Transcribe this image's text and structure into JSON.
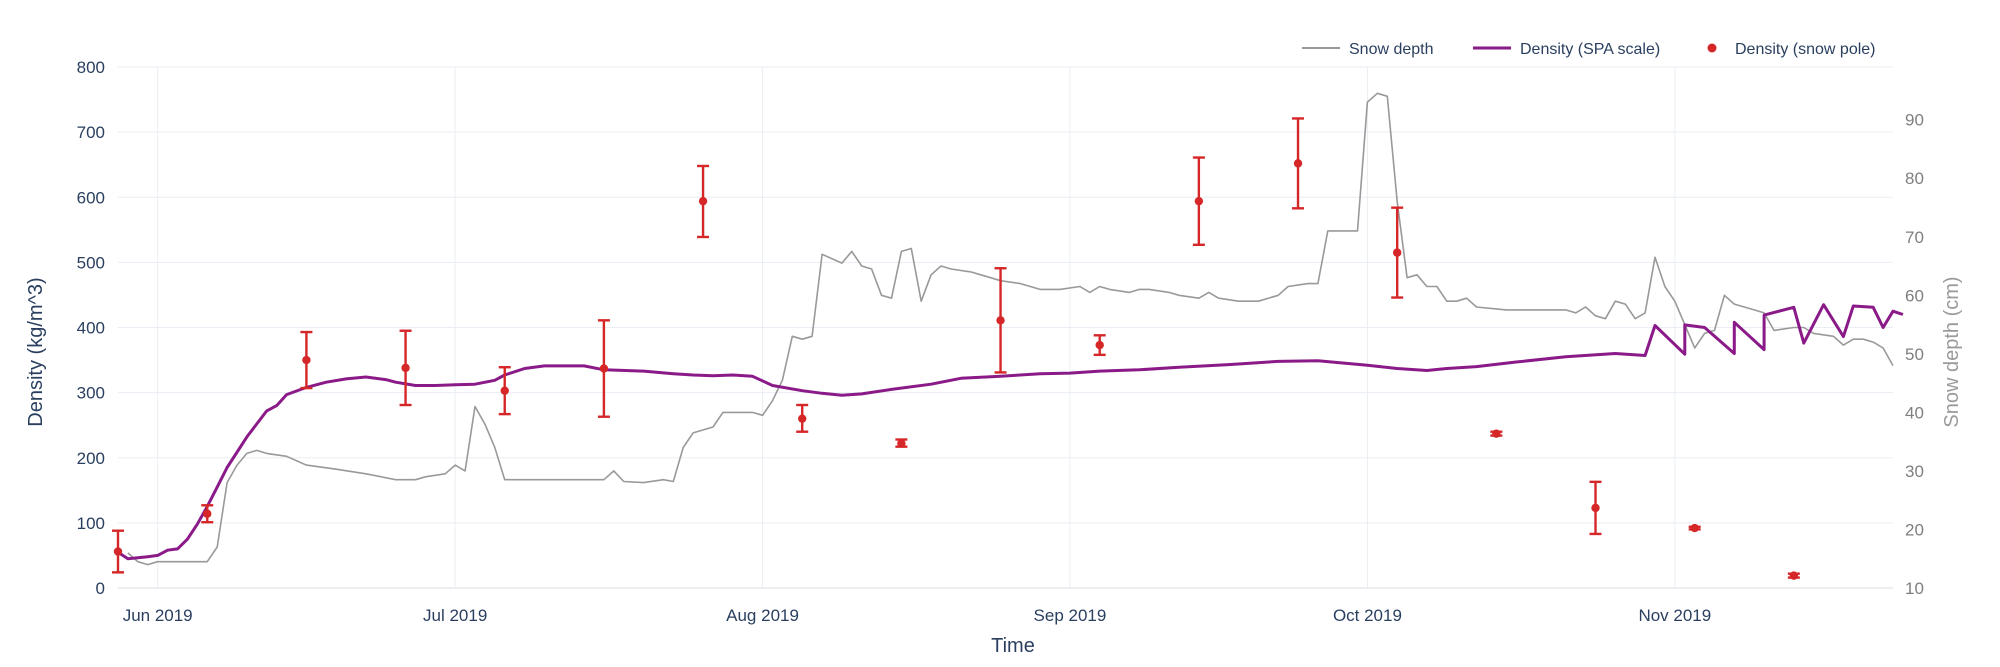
{
  "chart_data": {
    "type": "line",
    "xlabel": "Time",
    "ylabel": "Density (kg/m^3)",
    "ylabel_right": "Snow depth (cm)",
    "ylim": [
      0,
      800
    ],
    "ylim_right": [
      10,
      99
    ],
    "xlim": [
      "2019-05-28",
      "2019-11-23"
    ],
    "y_ticks": [
      0,
      100,
      200,
      300,
      400,
      500,
      600,
      700,
      800
    ],
    "y_right_ticks": [
      10,
      20,
      30,
      40,
      50,
      60,
      70,
      80,
      90
    ],
    "x_ticks": [
      {
        "date": "2019-06-01",
        "label": "Jun 2019"
      },
      {
        "date": "2019-07-01",
        "label": "Jul 2019"
      },
      {
        "date": "2019-08-01",
        "label": "Aug 2019"
      },
      {
        "date": "2019-09-01",
        "label": "Sep 2019"
      },
      {
        "date": "2019-10-01",
        "label": "Oct 2019"
      },
      {
        "date": "2019-11-01",
        "label": "Nov 2019"
      }
    ],
    "grid": true,
    "legend_position": "top-right",
    "series": [
      {
        "name": "Snow depth",
        "axis": "right",
        "type": "line",
        "color": "#999999",
        "points": [
          [
            "2019-05-29",
            16
          ],
          [
            "2019-05-30",
            14.5
          ],
          [
            "2019-05-31",
            14
          ],
          [
            "2019-06-01",
            14.5
          ],
          [
            "2019-06-02",
            14.5
          ],
          [
            "2019-06-03",
            14.5
          ],
          [
            "2019-06-06",
            14.5
          ],
          [
            "2019-06-07",
            17
          ],
          [
            "2019-06-08",
            28
          ],
          [
            "2019-06-09",
            31
          ],
          [
            "2019-06-10",
            33
          ],
          [
            "2019-06-11",
            33.5
          ],
          [
            "2019-06-12",
            33
          ],
          [
            "2019-06-14",
            32.5
          ],
          [
            "2019-06-16",
            31
          ],
          [
            "2019-06-19",
            30.3
          ],
          [
            "2019-06-22",
            29.5
          ],
          [
            "2019-06-25",
            28.5
          ],
          [
            "2019-06-27",
            28.5
          ],
          [
            "2019-06-28",
            29
          ],
          [
            "2019-06-30",
            29.5
          ],
          [
            "2019-07-01",
            31
          ],
          [
            "2019-07-02",
            30
          ],
          [
            "2019-06-25",
            28.5
          ],
          [
            "2019-07-03",
            41
          ],
          [
            "2019-07-04",
            38
          ],
          [
            "2019-07-05",
            34
          ],
          [
            "2019-07-06",
            28.5
          ],
          [
            "2019-07-09",
            28.5
          ],
          [
            "2019-07-13",
            28.5
          ],
          [
            "2019-07-16",
            28.5
          ],
          [
            "2019-07-17",
            30
          ],
          [
            "2019-07-18",
            28.2
          ],
          [
            "2019-07-20",
            28
          ],
          [
            "2019-07-22",
            28.5
          ],
          [
            "2019-07-23",
            28.2
          ],
          [
            "2019-07-24",
            34
          ],
          [
            "2019-07-25",
            36.5
          ],
          [
            "2019-07-27",
            37.5
          ],
          [
            "2019-07-28",
            40
          ],
          [
            "2019-07-31",
            40
          ],
          [
            "2019-08-01",
            39.5
          ],
          [
            "2019-08-02",
            42
          ],
          [
            "2019-08-03",
            45.5
          ],
          [
            "2019-08-04",
            53
          ],
          [
            "2019-08-05",
            52.5
          ],
          [
            "2019-08-06",
            53
          ],
          [
            "2019-08-07",
            67
          ],
          [
            "2019-08-09",
            65.5
          ],
          [
            "2019-08-10",
            67.5
          ],
          [
            "2019-08-11",
            65
          ],
          [
            "2019-08-12",
            64.5
          ],
          [
            "2019-08-13",
            60
          ],
          [
            "2019-08-14",
            59.5
          ],
          [
            "2019-08-15",
            67.5
          ],
          [
            "2019-08-16",
            68
          ],
          [
            "2019-08-17",
            59
          ],
          [
            "2019-08-18",
            63.5
          ],
          [
            "2019-08-19",
            65
          ],
          [
            "2019-08-20",
            64.5
          ],
          [
            "2019-08-22",
            64
          ],
          [
            "2019-08-23",
            63.5
          ],
          [
            "2019-08-24",
            63
          ],
          [
            "2019-08-25",
            62.5
          ],
          [
            "2019-08-27",
            62
          ],
          [
            "2019-08-29",
            61
          ],
          [
            "2019-08-31",
            61
          ],
          [
            "2019-09-02",
            61.5
          ],
          [
            "2019-09-03",
            60.5
          ],
          [
            "2019-09-04",
            61.5
          ],
          [
            "2019-09-05",
            61
          ],
          [
            "2019-09-07",
            60.5
          ],
          [
            "2019-09-08",
            61
          ],
          [
            "2019-09-09",
            61
          ],
          [
            "2019-09-11",
            60.5
          ],
          [
            "2019-09-12",
            60
          ],
          [
            "2019-09-14",
            59.5
          ],
          [
            "2019-09-15",
            60.5
          ],
          [
            "2019-09-16",
            59.5
          ],
          [
            "2019-09-18",
            59
          ],
          [
            "2019-09-20",
            59
          ],
          [
            "2019-09-22",
            60
          ],
          [
            "2019-09-23",
            61.5
          ],
          [
            "2019-09-25",
            62
          ],
          [
            "2019-09-26",
            62
          ],
          [
            "2019-09-27",
            71
          ],
          [
            "2019-09-28",
            71
          ],
          [
            "2019-09-30",
            71
          ],
          [
            "2019-10-01",
            93
          ],
          [
            "2019-10-02",
            94.5
          ],
          [
            "2019-10-03",
            94
          ],
          [
            "2019-10-04",
            76
          ],
          [
            "2019-10-05",
            63
          ],
          [
            "2019-10-06",
            63.5
          ],
          [
            "2019-10-07",
            61.5
          ],
          [
            "2019-10-08",
            61.5
          ],
          [
            "2019-10-09",
            59
          ],
          [
            "2019-10-10",
            59
          ],
          [
            "2019-10-11",
            59.5
          ],
          [
            "2019-10-12",
            58
          ],
          [
            "2019-10-15",
            57.5
          ],
          [
            "2019-10-18",
            57.5
          ],
          [
            "2019-10-21",
            57.5
          ],
          [
            "2019-10-22",
            57
          ],
          [
            "2019-10-23",
            58
          ],
          [
            "2019-10-24",
            56.5
          ],
          [
            "2019-10-25",
            56
          ],
          [
            "2019-10-26",
            59
          ],
          [
            "2019-10-27",
            58.5
          ],
          [
            "2019-10-28",
            56
          ],
          [
            "2019-10-29",
            57
          ],
          [
            "2019-10-30",
            66.5
          ],
          [
            "2019-10-31",
            61.5
          ],
          [
            "2019-11-01",
            59
          ],
          [
            "2019-11-02",
            55
          ],
          [
            "2019-11-03",
            51
          ],
          [
            "2019-11-04",
            53.5
          ],
          [
            "2019-11-05",
            54
          ],
          [
            "2019-11-06",
            60
          ],
          [
            "2019-11-07",
            58.5
          ],
          [
            "2019-11-08",
            58
          ],
          [
            "2019-11-09",
            57.5
          ],
          [
            "2019-11-10",
            57
          ],
          [
            "2019-11-11",
            54
          ],
          [
            "2019-11-13",
            54.5
          ],
          [
            "2019-11-14",
            54.5
          ],
          [
            "2019-11-15",
            53.5
          ],
          [
            "2019-11-17",
            53
          ],
          [
            "2019-11-18",
            51.5
          ],
          [
            "2019-11-19",
            52.5
          ],
          [
            "2019-11-20",
            52.5
          ],
          [
            "2019-11-21",
            52
          ],
          [
            "2019-11-22",
            51
          ],
          [
            "2019-11-23",
            48
          ]
        ]
      },
      {
        "name": "Density (SPA scale)",
        "axis": "left",
        "type": "line",
        "color": "#8b1a89",
        "points": [
          [
            "2019-05-28",
            55
          ],
          [
            "2019-05-29",
            45
          ],
          [
            "2019-05-31",
            48
          ],
          [
            "2019-06-01",
            50
          ],
          [
            "2019-06-02",
            58
          ],
          [
            "2019-06-03",
            60
          ],
          [
            "2019-06-04",
            75
          ],
          [
            "2019-06-05",
            98
          ],
          [
            "2019-06-06",
            125
          ],
          [
            "2019-06-07",
            155
          ],
          [
            "2019-06-08",
            185
          ],
          [
            "2019-06-10",
            232
          ],
          [
            "2019-06-12",
            272
          ],
          [
            "2019-06-13",
            280
          ],
          [
            "2019-06-14",
            297
          ],
          [
            "2019-06-16",
            308
          ],
          [
            "2019-06-18",
            316
          ],
          [
            "2019-06-20",
            321
          ],
          [
            "2019-06-22",
            324
          ],
          [
            "2019-06-24",
            320
          ],
          [
            "2019-06-25",
            316
          ],
          [
            "2019-06-27",
            311
          ],
          [
            "2019-06-29",
            311
          ],
          [
            "2019-07-01",
            312
          ],
          [
            "2019-07-03",
            313
          ],
          [
            "2019-07-05",
            319
          ],
          [
            "2019-07-06",
            327
          ],
          [
            "2019-07-08",
            337
          ],
          [
            "2019-07-10",
            341
          ],
          [
            "2019-07-14",
            341
          ],
          [
            "2019-07-16",
            335
          ],
          [
            "2019-07-20",
            333
          ],
          [
            "2019-07-23",
            329
          ],
          [
            "2019-07-25",
            327
          ],
          [
            "2019-07-27",
            326
          ],
          [
            "2019-07-29",
            327
          ],
          [
            "2019-07-31",
            325
          ],
          [
            "2019-08-02",
            311
          ],
          [
            "2019-08-05",
            303
          ],
          [
            "2019-08-07",
            299
          ],
          [
            "2019-08-09",
            296
          ],
          [
            "2019-08-11",
            298
          ],
          [
            "2019-08-14",
            305
          ],
          [
            "2019-08-18",
            313
          ],
          [
            "2019-08-21",
            322
          ],
          [
            "2019-08-25",
            325
          ],
          [
            "2019-08-29",
            329
          ],
          [
            "2019-09-01",
            330
          ],
          [
            "2019-09-04",
            333
          ],
          [
            "2019-09-08",
            335
          ],
          [
            "2019-09-12",
            339
          ],
          [
            "2019-09-17",
            343
          ],
          [
            "2019-09-22",
            348
          ],
          [
            "2019-09-26",
            349
          ],
          [
            "2019-10-01",
            342
          ],
          [
            "2019-10-04",
            337
          ],
          [
            "2019-10-07",
            334
          ],
          [
            "2019-10-09",
            337
          ],
          [
            "2019-10-12",
            340
          ],
          [
            "2019-10-16",
            347
          ],
          [
            "2019-10-21",
            355
          ],
          [
            "2019-10-26",
            360
          ],
          [
            "2019-10-29",
            357
          ],
          [
            "2019-11-02",
            359
          ],
          [
            "2019-11-07",
            360
          ],
          [
            "2019-11-10",
            366
          ],
          [
            "2019-11-14",
            376
          ],
          [
            "2019-11-18",
            386
          ],
          [
            "2019-11-22",
            400
          ],
          [
            "2019-10-30",
            403
          ],
          [
            "2019-11-02",
            404
          ],
          [
            "2019-11-04",
            400
          ],
          [
            "2019-11-07",
            408
          ],
          [
            "2019-11-10",
            419
          ],
          [
            "2019-11-13",
            431
          ],
          [
            "2019-11-16",
            435
          ],
          [
            "2019-11-19",
            433
          ],
          [
            "2019-11-21",
            431
          ],
          [
            "2019-11-23",
            425
          ],
          [
            "2019-11-24",
            420
          ]
        ]
      },
      {
        "name": "Density (snow pole)",
        "axis": "left",
        "type": "scatter",
        "color": "#d62728",
        "points": [
          {
            "x": "2019-05-28",
            "y": 56,
            "lo": 24,
            "hi": 88
          },
          {
            "x": "2019-06-06",
            "y": 114,
            "lo": 101,
            "hi": 127
          },
          {
            "x": "2019-06-16",
            "y": 350,
            "lo": 307,
            "hi": 393
          },
          {
            "x": "2019-06-26",
            "y": 338,
            "lo": 281,
            "hi": 395
          },
          {
            "x": "2019-07-06",
            "y": 303,
            "lo": 267,
            "hi": 339
          },
          {
            "x": "2019-07-16",
            "y": 337,
            "lo": 263,
            "hi": 411
          },
          {
            "x": "2019-07-26",
            "y": 594,
            "lo": 539,
            "hi": 648
          },
          {
            "x": "2019-08-05",
            "y": 260,
            "lo": 240,
            "hi": 281
          },
          {
            "x": "2019-08-15",
            "y": 222,
            "lo": 217,
            "hi": 228
          },
          {
            "x": "2019-08-25",
            "y": 411,
            "lo": 331,
            "hi": 491
          },
          {
            "x": "2019-09-04",
            "y": 373,
            "lo": 358,
            "hi": 388
          },
          {
            "x": "2019-09-14",
            "y": 594,
            "lo": 527,
            "hi": 661
          },
          {
            "x": "2019-09-24",
            "y": 652,
            "lo": 583,
            "hi": 721
          },
          {
            "x": "2019-10-04",
            "y": 515,
            "lo": 446,
            "hi": 584
          },
          {
            "x": "2019-10-14",
            "y": 237,
            "lo": 234,
            "hi": 240
          },
          {
            "x": "2019-10-24",
            "y": 123,
            "lo": 83,
            "hi": 163
          },
          {
            "x": "2019-11-03",
            "y": 92,
            "lo": 90,
            "hi": 94
          },
          {
            "x": "2019-11-13",
            "y": 19,
            "lo": 16,
            "hi": 22
          }
        ]
      }
    ]
  }
}
